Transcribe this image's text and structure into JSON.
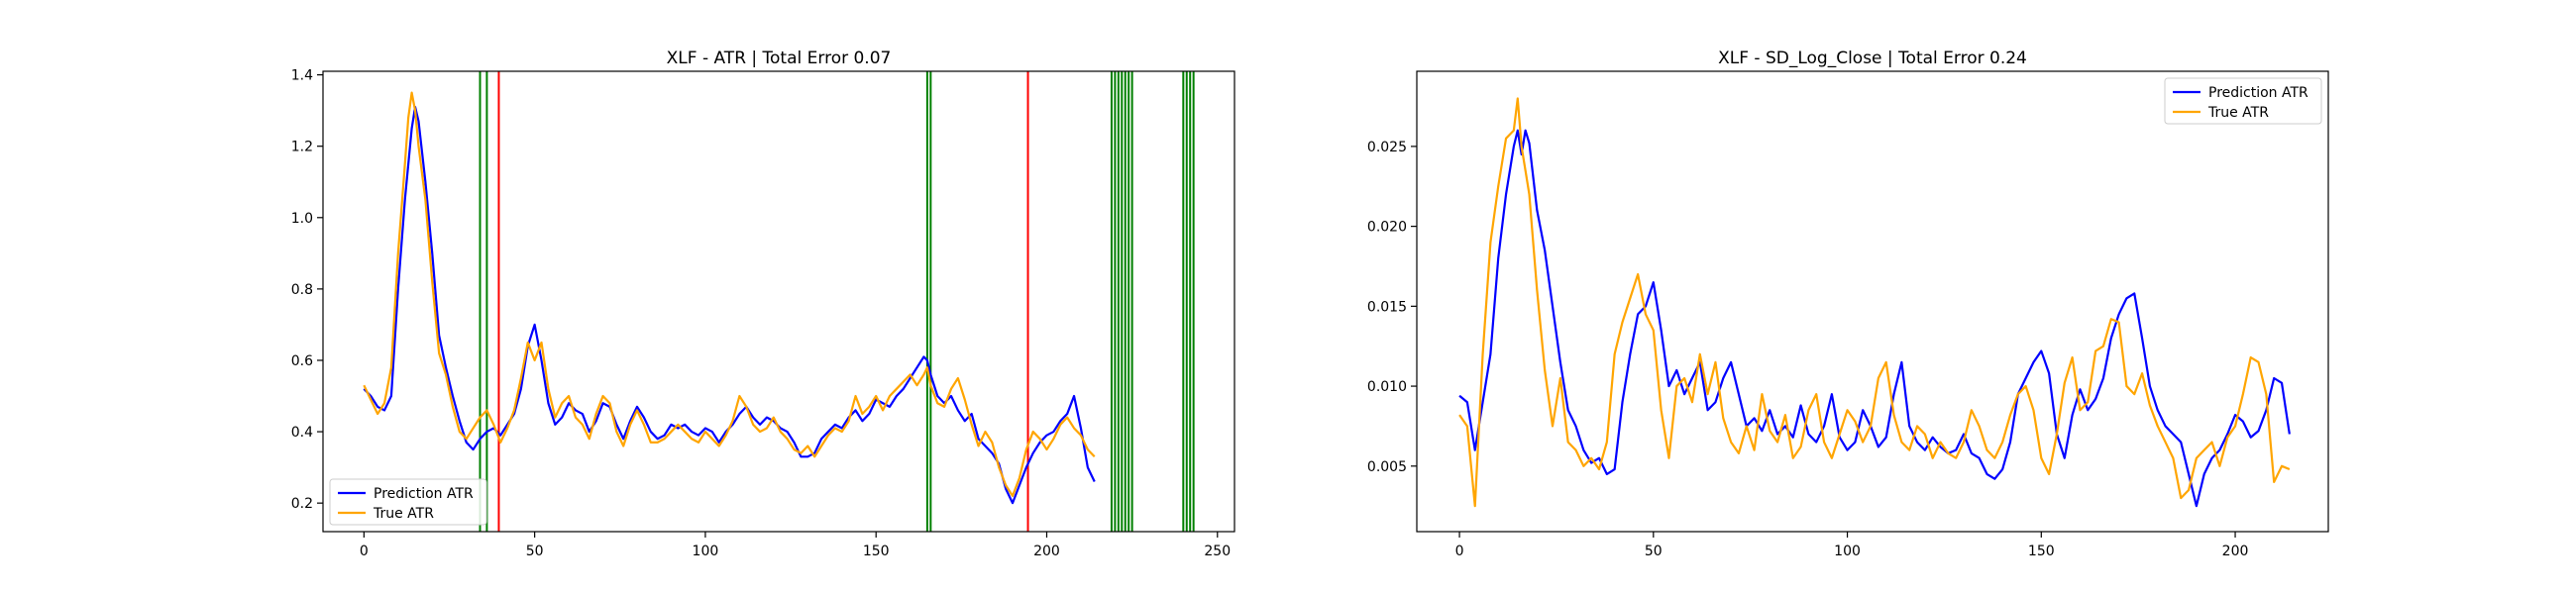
{
  "chart_data": [
    {
      "type": "line",
      "title": "XLF - ATR | Total Error 0.07",
      "xlim": [
        -12,
        255
      ],
      "ylim": [
        0.12,
        1.41
      ],
      "xticks": [
        0,
        50,
        100,
        150,
        200,
        250
      ],
      "yticks": [
        0.2,
        0.4,
        0.6,
        0.8,
        1.0,
        1.2,
        1.4
      ],
      "xtick_labels": [
        "0",
        "50",
        "100",
        "150",
        "200",
        "250"
      ],
      "ytick_labels": [
        "0.2",
        "0.4",
        "0.6",
        "0.8",
        "1.0",
        "1.2",
        "1.4"
      ],
      "legend_position": "lower-left",
      "vlines": [
        {
          "x": 34,
          "color": "#008000"
        },
        {
          "x": 36,
          "color": "#008000"
        },
        {
          "x": 39.5,
          "color": "#ff0000"
        },
        {
          "x": 165,
          "color": "#008000"
        },
        {
          "x": 166,
          "color": "#008000"
        },
        {
          "x": 194.5,
          "color": "#ff0000"
        },
        {
          "x": 219,
          "color": "#008000"
        },
        {
          "x": 220,
          "color": "#008000"
        },
        {
          "x": 221,
          "color": "#008000"
        },
        {
          "x": 222,
          "color": "#008000"
        },
        {
          "x": 223,
          "color": "#008000"
        },
        {
          "x": 224,
          "color": "#008000"
        },
        {
          "x": 225,
          "color": "#008000"
        },
        {
          "x": 240,
          "color": "#008000"
        },
        {
          "x": 241,
          "color": "#008000"
        },
        {
          "x": 242,
          "color": "#008000"
        },
        {
          "x": 243,
          "color": "#008000"
        }
      ],
      "series": [
        {
          "name": "Prediction ATR",
          "color": "#0000ff",
          "x": [
            0,
            2,
            4,
            6,
            8,
            10,
            12,
            13,
            14,
            15,
            16,
            18,
            20,
            22,
            24,
            26,
            28,
            30,
            32,
            34,
            36,
            38,
            40,
            42,
            44,
            46,
            48,
            50,
            52,
            54,
            56,
            58,
            60,
            62,
            64,
            66,
            68,
            70,
            72,
            74,
            76,
            78,
            80,
            82,
            84,
            86,
            88,
            90,
            92,
            94,
            96,
            98,
            100,
            102,
            104,
            106,
            108,
            110,
            112,
            114,
            116,
            118,
            120,
            122,
            124,
            126,
            128,
            130,
            132,
            134,
            136,
            138,
            140,
            142,
            144,
            146,
            148,
            150,
            152,
            154,
            156,
            158,
            160,
            162,
            164,
            165,
            166,
            168,
            170,
            172,
            174,
            176,
            178,
            180,
            182,
            184,
            186,
            188,
            190,
            192,
            194,
            196,
            198,
            200,
            202,
            204,
            206,
            208,
            210,
            212,
            214
          ],
          "y": [
            0.52,
            0.5,
            0.47,
            0.46,
            0.5,
            0.8,
            1.05,
            1.15,
            1.25,
            1.31,
            1.27,
            1.1,
            0.9,
            0.67,
            0.58,
            0.5,
            0.43,
            0.37,
            0.35,
            0.38,
            0.4,
            0.41,
            0.39,
            0.42,
            0.45,
            0.52,
            0.64,
            0.7,
            0.6,
            0.48,
            0.42,
            0.44,
            0.48,
            0.46,
            0.45,
            0.4,
            0.43,
            0.48,
            0.47,
            0.42,
            0.38,
            0.43,
            0.47,
            0.44,
            0.4,
            0.38,
            0.39,
            0.42,
            0.41,
            0.42,
            0.4,
            0.39,
            0.41,
            0.4,
            0.37,
            0.4,
            0.42,
            0.45,
            0.47,
            0.44,
            0.42,
            0.44,
            0.43,
            0.41,
            0.4,
            0.37,
            0.33,
            0.33,
            0.34,
            0.38,
            0.4,
            0.42,
            0.41,
            0.44,
            0.46,
            0.43,
            0.45,
            0.49,
            0.48,
            0.47,
            0.5,
            0.52,
            0.55,
            0.58,
            0.61,
            0.6,
            0.56,
            0.5,
            0.48,
            0.5,
            0.46,
            0.43,
            0.45,
            0.38,
            0.36,
            0.34,
            0.31,
            0.24,
            0.2,
            0.25,
            0.3,
            0.34,
            0.37,
            0.39,
            0.4,
            0.43,
            0.45,
            0.5,
            0.41,
            0.3,
            0.26
          ]
        },
        {
          "name": "True ATR",
          "color": "#ffa500",
          "x": [
            0,
            2,
            4,
            6,
            8,
            10,
            12,
            13,
            14,
            15,
            16,
            18,
            20,
            22,
            24,
            26,
            28,
            30,
            32,
            34,
            36,
            38,
            40,
            42,
            44,
            46,
            48,
            50,
            52,
            54,
            56,
            58,
            60,
            62,
            64,
            66,
            68,
            70,
            72,
            74,
            76,
            78,
            80,
            82,
            84,
            86,
            88,
            90,
            92,
            94,
            96,
            98,
            100,
            102,
            104,
            106,
            108,
            110,
            112,
            114,
            116,
            118,
            120,
            122,
            124,
            126,
            128,
            130,
            132,
            134,
            136,
            138,
            140,
            142,
            144,
            146,
            148,
            150,
            152,
            154,
            156,
            158,
            160,
            162,
            164,
            165,
            166,
            168,
            170,
            172,
            174,
            176,
            178,
            180,
            182,
            184,
            186,
            188,
            190,
            192,
            194,
            196,
            198,
            200,
            202,
            204,
            206,
            208,
            210,
            212,
            214
          ],
          "y": [
            0.53,
            0.49,
            0.45,
            0.48,
            0.58,
            0.9,
            1.15,
            1.28,
            1.35,
            1.3,
            1.2,
            1.05,
            0.82,
            0.62,
            0.56,
            0.47,
            0.4,
            0.38,
            0.41,
            0.44,
            0.46,
            0.42,
            0.37,
            0.41,
            0.46,
            0.55,
            0.65,
            0.6,
            0.65,
            0.52,
            0.44,
            0.48,
            0.5,
            0.44,
            0.42,
            0.38,
            0.45,
            0.5,
            0.48,
            0.4,
            0.36,
            0.42,
            0.46,
            0.42,
            0.37,
            0.37,
            0.38,
            0.4,
            0.42,
            0.4,
            0.38,
            0.37,
            0.4,
            0.38,
            0.36,
            0.39,
            0.43,
            0.5,
            0.47,
            0.42,
            0.4,
            0.41,
            0.44,
            0.4,
            0.38,
            0.35,
            0.34,
            0.36,
            0.33,
            0.36,
            0.39,
            0.41,
            0.4,
            0.43,
            0.5,
            0.45,
            0.47,
            0.5,
            0.46,
            0.5,
            0.52,
            0.54,
            0.56,
            0.53,
            0.56,
            0.58,
            0.53,
            0.48,
            0.47,
            0.52,
            0.55,
            0.49,
            0.42,
            0.36,
            0.4,
            0.37,
            0.3,
            0.25,
            0.22,
            0.27,
            0.35,
            0.4,
            0.38,
            0.35,
            0.38,
            0.42,
            0.44,
            0.41,
            0.39,
            0.35,
            0.33
          ]
        }
      ]
    },
    {
      "type": "line",
      "title": "XLF - SD_Log_Close | Total Error 0.24",
      "xlim": [
        -11,
        224
      ],
      "ylim": [
        0.0009,
        0.0297
      ],
      "xticks": [
        0,
        50,
        100,
        150,
        200
      ],
      "yticks": [
        0.005,
        0.01,
        0.015,
        0.02,
        0.025
      ],
      "xtick_labels": [
        "0",
        "50",
        "100",
        "150",
        "200"
      ],
      "ytick_labels": [
        "0.005",
        "0.010",
        "0.015",
        "0.020",
        "0.025"
      ],
      "legend_position": "upper-right",
      "vlines": [],
      "series": [
        {
          "name": "Prediction ATR",
          "color": "#0000ff",
          "x": [
            0,
            2,
            4,
            6,
            8,
            10,
            12,
            14,
            15,
            16,
            17,
            18,
            20,
            22,
            24,
            26,
            28,
            30,
            32,
            34,
            36,
            38,
            40,
            42,
            44,
            46,
            48,
            50,
            52,
            54,
            56,
            58,
            60,
            62,
            64,
            66,
            68,
            70,
            72,
            74,
            76,
            78,
            80,
            82,
            84,
            86,
            88,
            90,
            92,
            94,
            96,
            98,
            100,
            102,
            104,
            106,
            108,
            110,
            112,
            114,
            116,
            118,
            120,
            122,
            124,
            126,
            128,
            130,
            132,
            134,
            136,
            138,
            140,
            142,
            144,
            146,
            148,
            150,
            152,
            154,
            156,
            158,
            160,
            162,
            164,
            166,
            168,
            170,
            172,
            174,
            176,
            178,
            180,
            182,
            184,
            186,
            188,
            190,
            192,
            194,
            196,
            198,
            200,
            202,
            204,
            206,
            208,
            210,
            212,
            214
          ],
          "y": [
            0.0094,
            0.009,
            0.006,
            0.009,
            0.012,
            0.018,
            0.022,
            0.025,
            0.026,
            0.0245,
            0.026,
            0.0252,
            0.021,
            0.0185,
            0.015,
            0.0115,
            0.0085,
            0.0075,
            0.006,
            0.0052,
            0.0055,
            0.0045,
            0.0048,
            0.009,
            0.012,
            0.0145,
            0.015,
            0.0165,
            0.0135,
            0.01,
            0.011,
            0.0095,
            0.0105,
            0.0115,
            0.0085,
            0.009,
            0.0105,
            0.0115,
            0.0095,
            0.0075,
            0.008,
            0.0072,
            0.0085,
            0.007,
            0.0075,
            0.0068,
            0.0088,
            0.007,
            0.0065,
            0.0075,
            0.0095,
            0.0068,
            0.006,
            0.0065,
            0.0085,
            0.0075,
            0.0062,
            0.0068,
            0.0095,
            0.0115,
            0.0075,
            0.0065,
            0.006,
            0.0068,
            0.0062,
            0.0058,
            0.006,
            0.007,
            0.0058,
            0.0055,
            0.0045,
            0.0042,
            0.0048,
            0.0065,
            0.0095,
            0.0105,
            0.0115,
            0.0122,
            0.0108,
            0.007,
            0.0055,
            0.0082,
            0.0098,
            0.0085,
            0.0092,
            0.0105,
            0.013,
            0.0145,
            0.0155,
            0.0158,
            0.013,
            0.01,
            0.0085,
            0.0075,
            0.007,
            0.0065,
            0.0045,
            0.0025,
            0.0045,
            0.0055,
            0.006,
            0.007,
            0.0082,
            0.0078,
            0.0068,
            0.0072,
            0.0085,
            0.0105,
            0.0102,
            0.007
          ]
        },
        {
          "name": "True ATR",
          "color": "#ffa500",
          "x": [
            0,
            2,
            4,
            6,
            8,
            10,
            12,
            14,
            15,
            16,
            17,
            18,
            20,
            22,
            24,
            26,
            28,
            30,
            32,
            34,
            36,
            38,
            40,
            42,
            44,
            46,
            48,
            50,
            52,
            54,
            56,
            58,
            60,
            62,
            64,
            66,
            68,
            70,
            72,
            74,
            76,
            78,
            80,
            82,
            84,
            86,
            88,
            90,
            92,
            94,
            96,
            98,
            100,
            102,
            104,
            106,
            108,
            110,
            112,
            114,
            116,
            118,
            120,
            122,
            124,
            126,
            128,
            130,
            132,
            134,
            136,
            138,
            140,
            142,
            144,
            146,
            148,
            150,
            152,
            154,
            156,
            158,
            160,
            162,
            164,
            166,
            168,
            170,
            172,
            174,
            176,
            178,
            180,
            182,
            184,
            186,
            188,
            190,
            192,
            194,
            196,
            198,
            200,
            202,
            204,
            206,
            208,
            210,
            212,
            214
          ],
          "y": [
            0.0082,
            0.0075,
            0.0025,
            0.012,
            0.019,
            0.0225,
            0.0255,
            0.026,
            0.028,
            0.025,
            0.0235,
            0.022,
            0.016,
            0.011,
            0.0075,
            0.0105,
            0.0065,
            0.006,
            0.005,
            0.0055,
            0.0048,
            0.0065,
            0.012,
            0.014,
            0.0155,
            0.017,
            0.0145,
            0.0135,
            0.0085,
            0.0055,
            0.01,
            0.0105,
            0.009,
            0.012,
            0.0095,
            0.0115,
            0.008,
            0.0065,
            0.0058,
            0.0075,
            0.006,
            0.0095,
            0.0072,
            0.0065,
            0.0082,
            0.0055,
            0.0062,
            0.0085,
            0.0095,
            0.0065,
            0.0055,
            0.007,
            0.0085,
            0.0078,
            0.0065,
            0.0075,
            0.0105,
            0.0115,
            0.0082,
            0.0065,
            0.006,
            0.0075,
            0.007,
            0.0055,
            0.0065,
            0.0058,
            0.0055,
            0.0065,
            0.0085,
            0.0075,
            0.006,
            0.0055,
            0.0065,
            0.0082,
            0.0095,
            0.01,
            0.0085,
            0.0055,
            0.0045,
            0.007,
            0.0102,
            0.0118,
            0.0085,
            0.009,
            0.0122,
            0.0125,
            0.0142,
            0.014,
            0.01,
            0.0095,
            0.0108,
            0.0088,
            0.0075,
            0.0065,
            0.0055,
            0.003,
            0.0035,
            0.0055,
            0.006,
            0.0065,
            0.005,
            0.0068,
            0.0075,
            0.0095,
            0.0118,
            0.0115,
            0.0095,
            0.004,
            0.005,
            0.0048
          ]
        }
      ]
    }
  ]
}
